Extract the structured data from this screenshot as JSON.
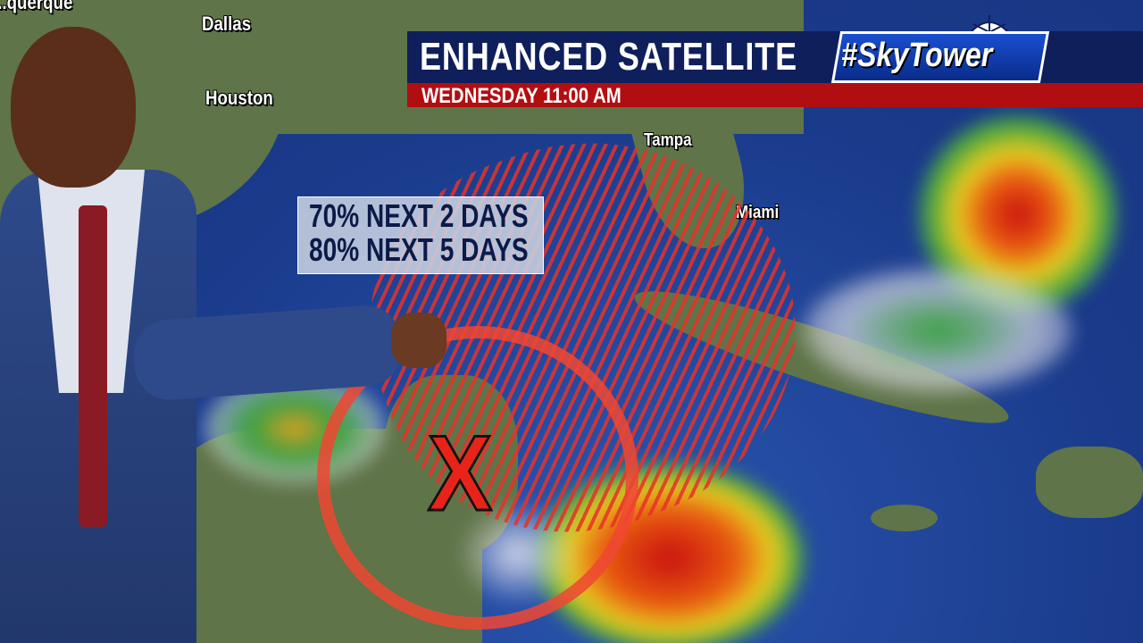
{
  "broadcast": {
    "title": "ENHANCED SATELLITE",
    "subtitle": "WEDNESDAY  11:00 AM",
    "logo_text": "#SkyTower",
    "colors": {
      "title_bar": "#0e1f5c",
      "subtitle_bar": "#b10e12",
      "hatch": "#e63228",
      "ring": "#f04632"
    }
  },
  "map": {
    "cities": [
      "...querque",
      "Dallas",
      "Houston",
      "Tampa",
      "Miami"
    ],
    "development_odds": [
      "70% NEXT 2 DAYS",
      "80% NEXT 5 DAYS"
    ],
    "marker": "X"
  }
}
